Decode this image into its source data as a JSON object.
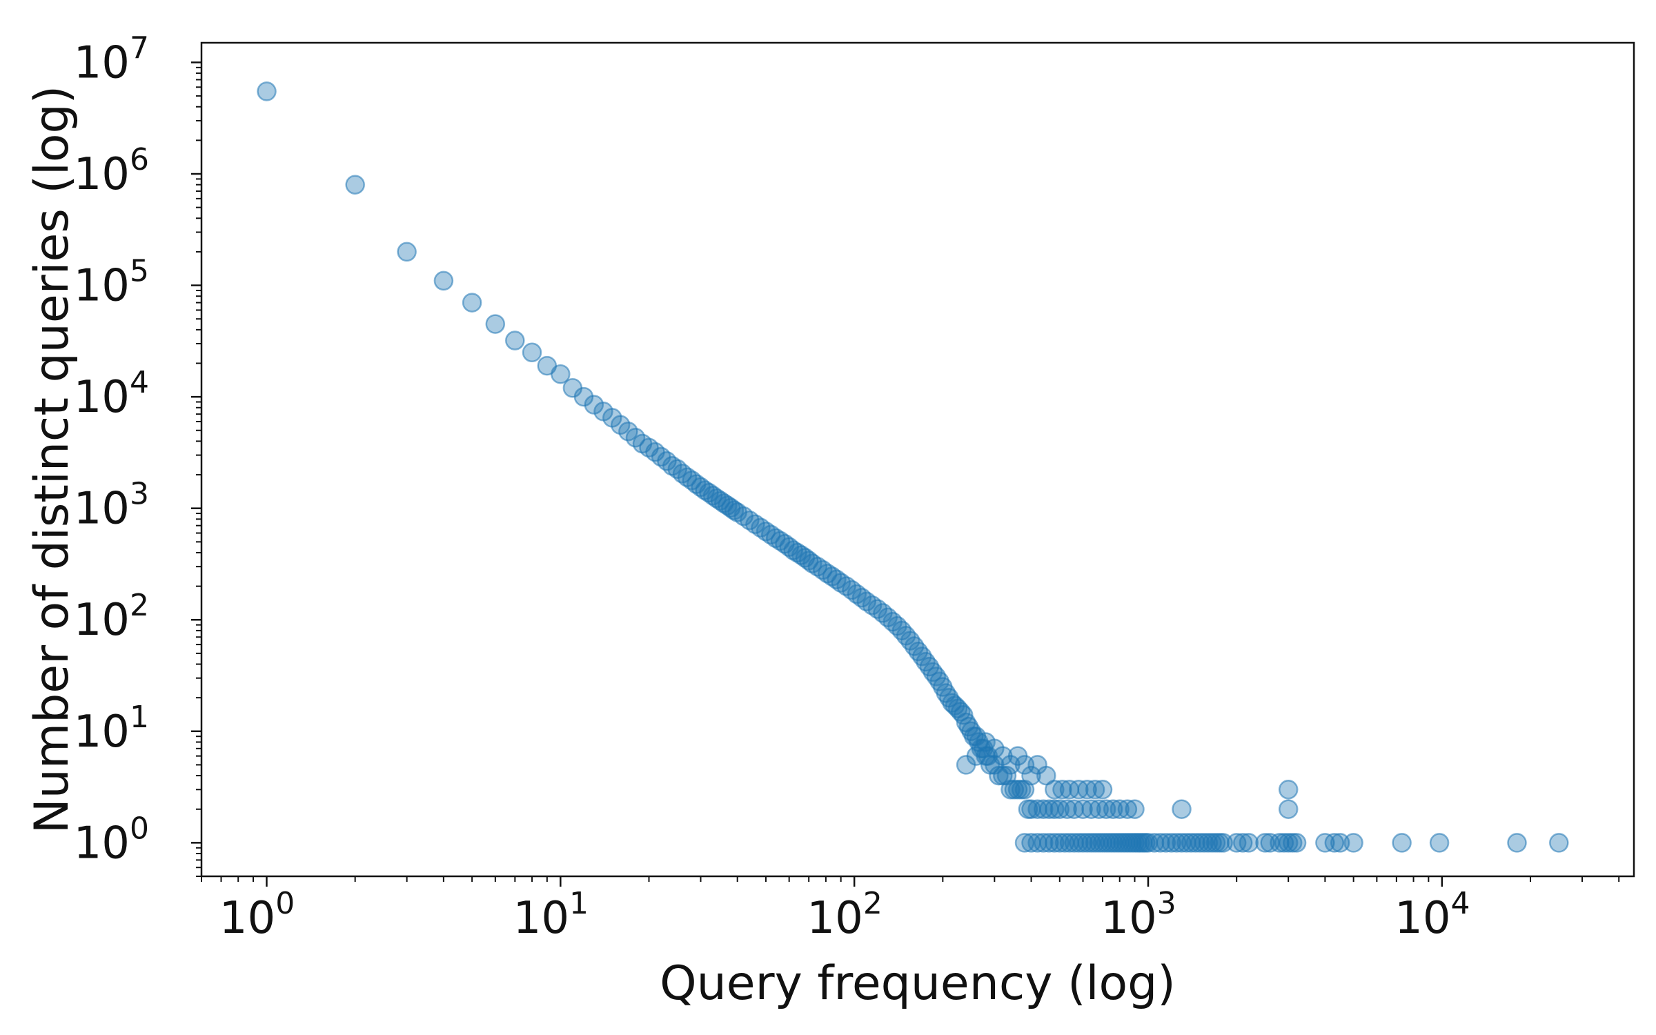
{
  "chart_data": {
    "type": "scatter",
    "title": "",
    "xlabel": "Query frequency (log)",
    "ylabel": "Number of distinct queries (log)",
    "xscale": "log",
    "yscale": "log",
    "xlim": [
      0.6,
      45000
    ],
    "ylim": [
      0.5,
      15000000
    ],
    "x_ticks": [
      1,
      10,
      100,
      1000,
      10000
    ],
    "y_ticks": [
      1,
      10,
      100,
      1000,
      10000,
      100000,
      1000000,
      10000000
    ],
    "tick_base": "10",
    "x_tick_exponents": [
      "0",
      "1",
      "2",
      "3",
      "4"
    ],
    "y_tick_exponents": [
      "0",
      "1",
      "2",
      "3",
      "4",
      "5",
      "6",
      "7"
    ],
    "grid": false,
    "legend": "none",
    "marker_color": "#1f77b4",
    "marker_alpha": 0.38,
    "series": [
      {
        "points": [
          [
            1,
            5500000
          ],
          [
            2,
            800000
          ],
          [
            3,
            200000
          ],
          [
            4,
            110000
          ],
          [
            5,
            70000
          ],
          [
            6,
            45000
          ],
          [
            7,
            32000
          ],
          [
            8,
            25000
          ],
          [
            9,
            19000
          ],
          [
            10,
            16000
          ],
          [
            11,
            12000
          ],
          [
            12,
            10000
          ],
          [
            13,
            8500
          ],
          [
            14,
            7400
          ],
          [
            15,
            6500
          ],
          [
            16,
            5600
          ],
          [
            17,
            4900
          ],
          [
            18,
            4300
          ],
          [
            19,
            3800
          ],
          [
            20,
            3500
          ],
          [
            21,
            3200
          ],
          [
            22,
            2900
          ],
          [
            23,
            2650
          ],
          [
            24,
            2400
          ],
          [
            25,
            2250
          ],
          [
            26,
            2050
          ],
          [
            27,
            1900
          ],
          [
            28,
            1780
          ],
          [
            29,
            1650
          ],
          [
            30,
            1550
          ],
          [
            31,
            1450
          ],
          [
            32,
            1380
          ],
          [
            33,
            1300
          ],
          [
            34,
            1230
          ],
          [
            35,
            1170
          ],
          [
            36,
            1110
          ],
          [
            37,
            1060
          ],
          [
            38,
            1010
          ],
          [
            39,
            960
          ],
          [
            40,
            920
          ],
          [
            42,
            850
          ],
          [
            44,
            780
          ],
          [
            46,
            720
          ],
          [
            48,
            670
          ],
          [
            50,
            620
          ],
          [
            52,
            580
          ],
          [
            54,
            540
          ],
          [
            56,
            510
          ],
          [
            58,
            480
          ],
          [
            60,
            450
          ],
          [
            62,
            420
          ],
          [
            64,
            400
          ],
          [
            66,
            380
          ],
          [
            68,
            360
          ],
          [
            70,
            340
          ],
          [
            72,
            320
          ],
          [
            75,
            300
          ],
          [
            78,
            280
          ],
          [
            81,
            260
          ],
          [
            84,
            245
          ],
          [
            87,
            230
          ],
          [
            90,
            215
          ],
          [
            94,
            200
          ],
          [
            98,
            185
          ],
          [
            102,
            170
          ],
          [
            106,
            158
          ],
          [
            110,
            146
          ],
          [
            115,
            135
          ],
          [
            120,
            125
          ],
          [
            125,
            115
          ],
          [
            130,
            105
          ],
          [
            135,
            96
          ],
          [
            140,
            88
          ],
          [
            145,
            80
          ],
          [
            150,
            72
          ],
          [
            155,
            65
          ],
          [
            160,
            58
          ],
          [
            165,
            52
          ],
          [
            170,
            47
          ],
          [
            175,
            42
          ],
          [
            180,
            38
          ],
          [
            185,
            34
          ],
          [
            190,
            31
          ],
          [
            195,
            28
          ],
          [
            200,
            25
          ],
          [
            205,
            22
          ],
          [
            210,
            20
          ],
          [
            215,
            18
          ],
          [
            220,
            17
          ],
          [
            225,
            16
          ],
          [
            230,
            15
          ],
          [
            235,
            14
          ],
          [
            240,
            12
          ],
          [
            245,
            11
          ],
          [
            250,
            10
          ],
          [
            255,
            9
          ],
          [
            260,
            9
          ],
          [
            265,
            8
          ],
          [
            270,
            7
          ],
          [
            275,
            7
          ],
          [
            280,
            6
          ],
          [
            285,
            6
          ],
          [
            290,
            5
          ],
          [
            300,
            5
          ],
          [
            310,
            4
          ],
          [
            320,
            4
          ],
          [
            330,
            4
          ],
          [
            340,
            3
          ],
          [
            350,
            3
          ],
          [
            360,
            3
          ],
          [
            370,
            3
          ],
          [
            380,
            3
          ],
          [
            390,
            2
          ],
          [
            400,
            2
          ],
          [
            420,
            2
          ],
          [
            440,
            2
          ],
          [
            460,
            2
          ],
          [
            480,
            2
          ],
          [
            500,
            2
          ],
          [
            530,
            2
          ],
          [
            560,
            2
          ],
          [
            600,
            2
          ],
          [
            640,
            2
          ],
          [
            680,
            2
          ],
          [
            720,
            2
          ],
          [
            760,
            2
          ],
          [
            800,
            2
          ],
          [
            850,
            2
          ],
          [
            900,
            2
          ],
          [
            1300,
            2
          ],
          [
            240,
            5
          ],
          [
            260,
            6
          ],
          [
            280,
            8
          ],
          [
            300,
            7
          ],
          [
            320,
            6
          ],
          [
            340,
            5
          ],
          [
            360,
            6
          ],
          [
            380,
            5
          ],
          [
            400,
            4
          ],
          [
            420,
            5
          ],
          [
            450,
            4
          ],
          [
            480,
            3
          ],
          [
            510,
            3
          ],
          [
            540,
            3
          ],
          [
            580,
            3
          ],
          [
            620,
            3
          ],
          [
            660,
            3
          ],
          [
            700,
            3
          ],
          [
            380,
            1
          ],
          [
            400,
            1
          ],
          [
            420,
            1
          ],
          [
            440,
            1
          ],
          [
            460,
            1
          ],
          [
            480,
            1
          ],
          [
            500,
            1
          ],
          [
            520,
            1
          ],
          [
            540,
            1
          ],
          [
            560,
            1
          ],
          [
            580,
            1
          ],
          [
            600,
            1
          ],
          [
            620,
            1
          ],
          [
            640,
            1
          ],
          [
            660,
            1
          ],
          [
            680,
            1
          ],
          [
            700,
            1
          ],
          [
            720,
            1
          ],
          [
            740,
            1
          ],
          [
            760,
            1
          ],
          [
            780,
            1
          ],
          [
            800,
            1
          ],
          [
            820,
            1
          ],
          [
            840,
            1
          ],
          [
            860,
            1
          ],
          [
            880,
            1
          ],
          [
            900,
            1
          ],
          [
            920,
            1
          ],
          [
            940,
            1
          ],
          [
            960,
            1
          ],
          [
            980,
            1
          ],
          [
            1000,
            1
          ],
          [
            1050,
            1
          ],
          [
            1100,
            1
          ],
          [
            1150,
            1
          ],
          [
            1200,
            1
          ],
          [
            1250,
            1
          ],
          [
            1300,
            1
          ],
          [
            1350,
            1
          ],
          [
            1400,
            1
          ],
          [
            1450,
            1
          ],
          [
            1500,
            1
          ],
          [
            1550,
            1
          ],
          [
            1600,
            1
          ],
          [
            1650,
            1
          ],
          [
            1700,
            1
          ],
          [
            1750,
            1
          ],
          [
            1800,
            1
          ],
          [
            2000,
            1
          ],
          [
            2100,
            1
          ],
          [
            2200,
            1
          ],
          [
            2500,
            1
          ],
          [
            2600,
            1
          ],
          [
            2800,
            1
          ],
          [
            2900,
            1
          ],
          [
            3000,
            1
          ],
          [
            3100,
            1
          ],
          [
            3200,
            1
          ],
          [
            4000,
            1
          ],
          [
            4300,
            1
          ],
          [
            4500,
            1
          ],
          [
            5000,
            1
          ],
          [
            7300,
            1
          ],
          [
            9800,
            1
          ],
          [
            18000,
            1
          ],
          [
            25000,
            1
          ],
          [
            3000,
            3
          ],
          [
            3000,
            2
          ]
        ]
      }
    ]
  }
}
